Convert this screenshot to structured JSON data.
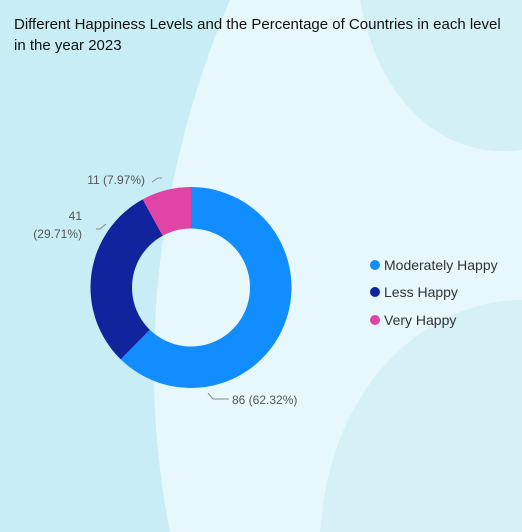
{
  "header": {
    "title": "Different Happiness Levels and the Percentage of Countries in each level in the year 2023"
  },
  "chart_data": {
    "type": "pie",
    "variant": "donut",
    "title": "Different Happiness Levels and the Percentage of Countries in each level in the year 2023",
    "categories": [
      "Moderately Happy",
      "Less Happy",
      "Very Happy"
    ],
    "values": [
      86,
      41,
      11
    ],
    "percentages": [
      62.32,
      29.71,
      7.97
    ],
    "data_labels": [
      "86 (62.32%)",
      "41 (29.71%)",
      "11 (7.97%)"
    ],
    "colors": [
      "#118dff",
      "#12239e",
      "#e044a7"
    ],
    "legend": {
      "placement": "right",
      "entries": [
        "Moderately Happy",
        "Less Happy",
        "Very Happy"
      ]
    }
  }
}
